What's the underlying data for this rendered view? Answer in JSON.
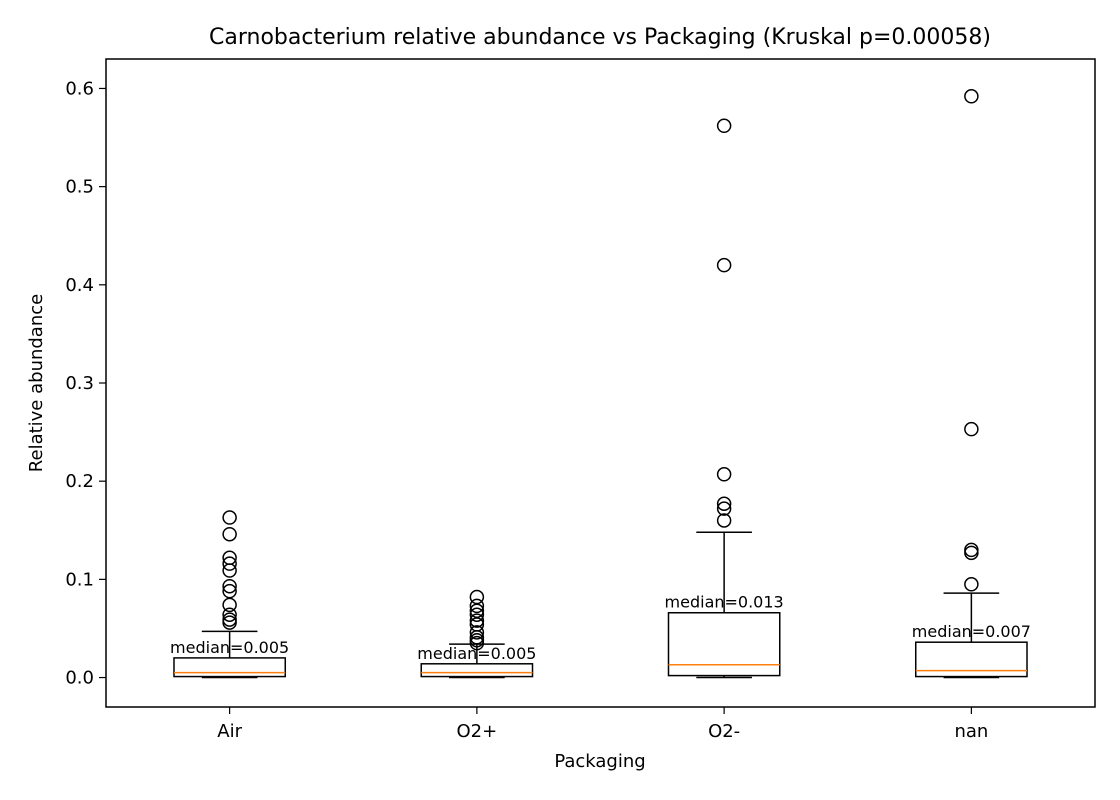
{
  "chart_data": {
    "type": "box",
    "title": "Carnobacterium relative abundance vs Packaging  (Kruskal p=0.00058)",
    "xlabel": "Packaging",
    "ylabel": "Relative abundance",
    "ylim": [
      -0.03,
      0.63
    ],
    "yticks": [
      0.0,
      0.1,
      0.2,
      0.3,
      0.4,
      0.5,
      0.6
    ],
    "ytick_labels": [
      "0.0",
      "0.1",
      "0.2",
      "0.3",
      "0.4",
      "0.5",
      "0.6"
    ],
    "grid": false,
    "median_color": "#ff7f0e",
    "categories": [
      "Air",
      "O2+",
      "O2-",
      "nan"
    ],
    "boxes": [
      {
        "category": "Air",
        "whisker_low": 0.0,
        "q1": 0.001,
        "median": 0.005,
        "q3": 0.02,
        "whisker_high": 0.047,
        "median_label": "median=0.005",
        "outliers": [
          0.163,
          0.146,
          0.122,
          0.116,
          0.109,
          0.093,
          0.088,
          0.074,
          0.064,
          0.059,
          0.056
        ]
      },
      {
        "category": "O2+",
        "whisker_low": 0.0,
        "q1": 0.001,
        "median": 0.005,
        "q3": 0.014,
        "whisker_high": 0.034,
        "median_label": "median=0.005",
        "outliers": [
          0.082,
          0.073,
          0.068,
          0.064,
          0.058,
          0.054,
          0.046,
          0.041,
          0.038,
          0.035
        ]
      },
      {
        "category": "O2-",
        "whisker_low": 0.0,
        "q1": 0.002,
        "median": 0.013,
        "q3": 0.066,
        "whisker_high": 0.148,
        "median_label": "median=0.013",
        "outliers": [
          0.562,
          0.42,
          0.207,
          0.177,
          0.172,
          0.16
        ]
      },
      {
        "category": "nan",
        "whisker_low": 0.0,
        "q1": 0.001,
        "median": 0.007,
        "q3": 0.036,
        "whisker_high": 0.086,
        "median_label": "median=0.007",
        "outliers": [
          0.592,
          0.253,
          0.13,
          0.127,
          0.095
        ]
      }
    ]
  }
}
